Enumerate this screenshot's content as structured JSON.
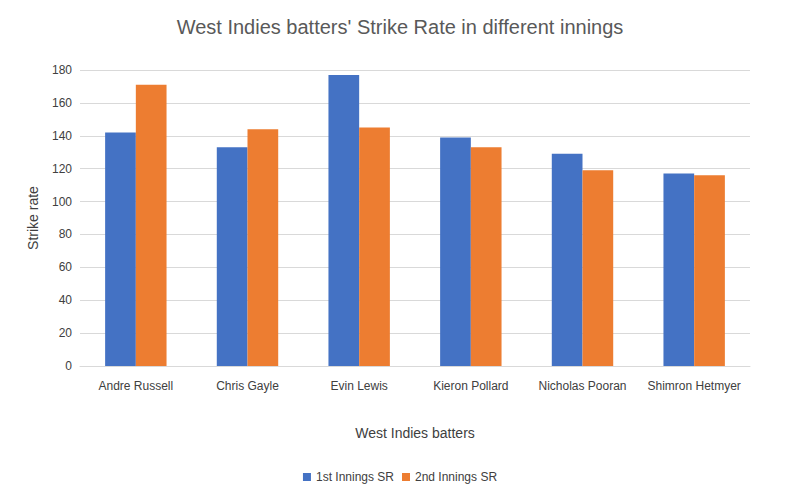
{
  "chart_data": {
    "type": "bar",
    "title": "West Indies batters' Strike Rate in different innings",
    "x_label": "West Indies batters",
    "y_label": "Strike rate",
    "categories": [
      "Andre Russell",
      "Chris Gayle",
      "Evin Lewis",
      "Kieron Pollard",
      "Nicholas Pooran",
      "Shimron Hetmyer"
    ],
    "series": [
      {
        "name": "1st Innings SR",
        "color": "#4472c4",
        "values": [
          142,
          133,
          177,
          139,
          129,
          117
        ]
      },
      {
        "name": "2nd Innings SR",
        "color": "#ed7d31",
        "values": [
          171,
          144,
          145,
          133,
          119,
          116
        ]
      }
    ],
    "ylim": [
      0,
      180
    ],
    "yticks": [
      0,
      20,
      40,
      60,
      80,
      100,
      120,
      140,
      160,
      180
    ],
    "grid": true,
    "legend": "bottom"
  }
}
